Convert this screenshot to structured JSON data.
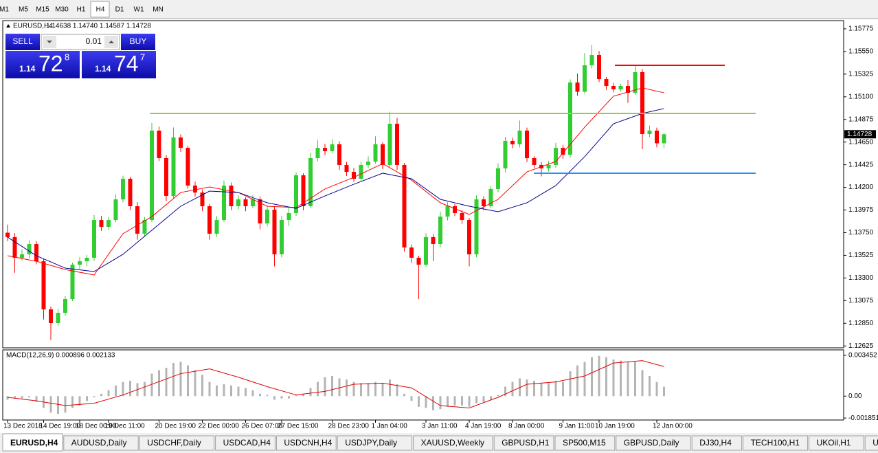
{
  "toolbar": {
    "timeframes": [
      "M1",
      "M5",
      "M15",
      "M30",
      "H1",
      "H4",
      "D1",
      "W1",
      "MN"
    ],
    "active": 5
  },
  "trade_panel": {
    "sell": "SELL",
    "buy": "BUY",
    "lot": "0.01",
    "bid": {
      "big": "1.14",
      "pips": "72",
      "point": "8"
    },
    "ask": {
      "big": "1.14",
      "pips": "74",
      "point": "7"
    }
  },
  "chart_data": [
    {
      "type": "candlestick",
      "title": "EURUSD,H4",
      "ohlc_text": "1.14638 1.14740 1.14587 1.14728",
      "up_color": "#32cd32",
      "down_color": "#ff0000",
      "grid": false,
      "ylim": [
        1.12613,
        1.15843
      ],
      "yticks": [
        1.15775,
        {
          "value": 1.1555,
          "label": "1.15550"
        },
        1.15325,
        {
          "value": 1.151,
          "label": "1.15100"
        },
        1.14875,
        {
          "value": 1.1465,
          "label": "1.14650"
        },
        1.14425,
        {
          "value": 1.142,
          "label": "1.14200"
        },
        1.13975,
        {
          "value": 1.1375,
          "label": "1.13750"
        },
        1.13525,
        {
          "value": 1.133,
          "label": "1.13300"
        },
        1.13075,
        {
          "value": 1.1285,
          "label": "1.12850"
        },
        1.12625
      ],
      "open": [
        1.1375,
        1.13706,
        1.13501,
        1.13535,
        1.13637,
        1.13466,
        1.12988,
        1.12852,
        1.12954,
        1.13091,
        1.13432,
        1.13466,
        1.13501,
        1.13876,
        1.13808,
        1.13876,
        1.14081,
        1.14286,
        1.14013,
        1.1374,
        1.13876,
        1.14764,
        1.14491,
        1.14115,
        1.14696,
        1.14593,
        1.14218,
        1.14149,
        1.14013,
        1.1374,
        1.13876,
        1.14218,
        1.14013,
        1.14081,
        1.14013,
        1.14081,
        1.13842,
        1.13979,
        1.13535,
        1.13876,
        1.13945,
        1.1432,
        1.14013,
        1.14491,
        1.14593,
        1.1456,
        1.14628,
        1.14423,
        1.14354,
        1.14286,
        1.14423,
        1.14457,
        1.14628,
        1.14423,
        1.14832,
        1.14423,
        1.13603,
        1.13501,
        1.13432,
        1.13706,
        1.13637,
        1.1391,
        1.14013,
        1.13945,
        1.13876,
        1.13535,
        1.14081,
        1.14013,
        1.14184,
        1.14389,
        1.14662,
        1.14628,
        1.14764,
        1.14491,
        1.14423,
        1.14389,
        1.14423,
        1.14593,
        1.14525,
        1.15242,
        1.1515,
        1.15413,
        1.15515,
        1.15276,
        1.15208,
        1.15174,
        1.15208,
        1.1514,
        1.15345,
        1.1473,
        1.14764,
        1.14638
      ],
      "high": [
        1.1383,
        1.13746,
        1.13585,
        1.13677,
        1.13667,
        1.13486,
        1.13018,
        1.12994,
        1.13121,
        1.13452,
        1.13506,
        1.13531,
        1.13926,
        1.13916,
        1.13906,
        1.14131,
        1.14316,
        1.14306,
        1.14053,
        1.13906,
        1.1484,
        1.14804,
        1.14521,
        1.14796,
        1.14726,
        1.14613,
        1.14258,
        1.14179,
        1.14033,
        1.13916,
        1.14268,
        1.14248,
        1.14121,
        1.14101,
        1.14121,
        1.14111,
        1.14019,
        1.14009,
        1.13916,
        1.13995,
        1.1435,
        1.1434,
        1.14541,
        1.14673,
        1.14633,
        1.14678,
        1.14658,
        1.14453,
        1.14394,
        1.14453,
        1.14507,
        1.14708,
        1.14648,
        1.14952,
        1.14892,
        1.14443,
        1.13633,
        1.13521,
        1.13746,
        1.13736,
        1.1396,
        1.14053,
        1.14033,
        1.13975,
        1.13896,
        1.14121,
        1.14111,
        1.14214,
        1.14439,
        1.14702,
        1.14692,
        1.14864,
        1.14794,
        1.14511,
        1.14453,
        1.14463,
        1.14643,
        1.14623,
        1.15272,
        1.15332,
        1.15533,
        1.15615,
        1.15555,
        1.15296,
        1.15238,
        1.15228,
        1.15268,
        1.15405,
        1.15375,
        1.14814,
        1.14794,
        1.1474
      ],
      "low": [
        1.13666,
        1.13351,
        1.13471,
        1.13495,
        1.13436,
        1.12888,
        1.12682,
        1.12822,
        1.12924,
        1.13071,
        1.13392,
        1.13416,
        1.13471,
        1.13768,
        1.13778,
        1.13856,
        1.14051,
        1.13973,
        1.1368,
        1.1371,
        1.13856,
        1.14461,
        1.14065,
        1.14085,
        1.14553,
        1.14188,
        1.14109,
        1.13963,
        1.1368,
        1.1371,
        1.13856,
        1.13973,
        1.13983,
        1.13963,
        1.13993,
        1.13782,
        1.13812,
        1.13415,
        1.13505,
        1.13816,
        1.13915,
        1.13973,
        1.13993,
        1.14461,
        1.1452,
        1.1454,
        1.14373,
        1.14314,
        1.14256,
        1.14266,
        1.14393,
        1.14437,
        1.14383,
        1.14403,
        1.14373,
        1.13563,
        1.13451,
        1.13091,
        1.13412,
        1.13467,
        1.13607,
        1.1387,
        1.13915,
        1.13836,
        1.13415,
        1.13505,
        1.13973,
        1.13993,
        1.14154,
        1.14349,
        1.14588,
        1.14598,
        1.14451,
        1.14393,
        1.14309,
        1.14359,
        1.14393,
        1.14485,
        1.14495,
        1.1511,
        1.1513,
        1.15383,
        1.15246,
        1.15168,
        1.15144,
        1.15154,
        1.1504,
        1.1512,
        1.1458,
        1.147,
        1.14598,
        1.14587
      ],
      "close": [
        1.13706,
        1.13501,
        1.13535,
        1.13637,
        1.13466,
        1.12988,
        1.12852,
        1.12954,
        1.13091,
        1.13432,
        1.13466,
        1.13501,
        1.13876,
        1.13808,
        1.13876,
        1.14081,
        1.14286,
        1.14013,
        1.1374,
        1.13876,
        1.14764,
        1.14491,
        1.14115,
        1.14696,
        1.14593,
        1.14218,
        1.14149,
        1.14013,
        1.1374,
        1.13876,
        1.14218,
        1.14013,
        1.14081,
        1.14013,
        1.14081,
        1.13842,
        1.13979,
        1.13535,
        1.13876,
        1.13945,
        1.1432,
        1.14013,
        1.14491,
        1.14593,
        1.1456,
        1.14628,
        1.14423,
        1.14354,
        1.14286,
        1.14423,
        1.14457,
        1.14628,
        1.14423,
        1.14832,
        1.14423,
        1.13603,
        1.13501,
        1.13432,
        1.13706,
        1.13637,
        1.1391,
        1.14013,
        1.13945,
        1.13876,
        1.13535,
        1.14081,
        1.14013,
        1.14184,
        1.14389,
        1.14662,
        1.14628,
        1.14764,
        1.14491,
        1.14423,
        1.14389,
        1.14423,
        1.14593,
        1.14525,
        1.15242,
        1.1515,
        1.15413,
        1.15515,
        1.15276,
        1.15208,
        1.15174,
        1.15208,
        1.1514,
        1.15345,
        1.1473,
        1.14764,
        1.14638,
        1.14728
      ],
      "series": [
        {
          "color": "#ff0000",
          "x": [
            0,
            4,
            8,
            12,
            16,
            20,
            24,
            28,
            32,
            36,
            40,
            44,
            48,
            52,
            56,
            60,
            64,
            68,
            72,
            76,
            80,
            84,
            88,
            91
          ],
          "values": [
            1.13521,
            1.13466,
            1.13384,
            1.1333,
            1.1374,
            1.1391,
            1.14149,
            1.14204,
            1.14149,
            1.14013,
            1.13999,
            1.14184,
            1.143,
            1.14436,
            1.14272,
            1.14047,
            1.13931,
            1.14081,
            1.14354,
            1.14457,
            1.14798,
            1.15106,
            1.15188,
            1.1514
          ]
        },
        {
          "color": "#00008b",
          "x": [
            0,
            4,
            8,
            12,
            16,
            20,
            24,
            28,
            32,
            36,
            40,
            44,
            48,
            52,
            56,
            60,
            64,
            68,
            72,
            76,
            80,
            84,
            88,
            91
          ],
          "values": [
            1.13706,
            1.13521,
            1.13398,
            1.13364,
            1.13535,
            1.13774,
            1.14013,
            1.14163,
            1.14149,
            1.14047,
            1.13992,
            1.14115,
            1.14231,
            1.14341,
            1.14286,
            1.14081,
            1.14013,
            1.13958,
            1.14047,
            1.14218,
            1.14505,
            1.14832,
            1.14935,
            1.14983
          ]
        }
      ],
      "levels": [
        {
          "value": 1.14935,
          "color": "#9acd32"
        },
        {
          "value": 1.15413,
          "color": "#ff0000"
        },
        {
          "value": 1.14341,
          "color": "#1e90ff"
        }
      ],
      "x_labels": [
        {
          "index": 0,
          "label": "13 Dec 2018"
        },
        {
          "index": 5,
          "label": "14 Dec 19:00"
        },
        {
          "index": 10,
          "label": "18 Dec 00:00"
        },
        {
          "index": 14,
          "label": "19 Dec 11:00"
        },
        {
          "index": 21,
          "label": "20 Dec 19:00"
        },
        {
          "index": 27,
          "label": "22 Dec 00:00"
        },
        {
          "index": 33,
          "label": "26 Dec 07:00"
        },
        {
          "index": 38,
          "label": "27 Dec 15:00"
        },
        {
          "index": 45,
          "label": "28 Dec 23:00"
        },
        {
          "index": 51,
          "label": "1 Jan 04:00"
        },
        {
          "index": 58,
          "label": "3 Jan 11:00"
        },
        {
          "index": 64,
          "label": "4 Jan 19:00"
        },
        {
          "index": 70,
          "label": "8 Jan 00:00"
        },
        {
          "index": 77,
          "label": "9 Jan 11:00"
        },
        {
          "index": 82,
          "label": "10 Jan 19:00"
        },
        {
          "index": 90,
          "label": "12 Jan 00:00"
        }
      ]
    },
    {
      "type": "bar",
      "title": "MACD(12,26,9) 0.000896 0.002133",
      "color": "#b4b4b4",
      "ylim": [
        -0.00196,
        0.00385
      ],
      "yticks": [
        0.003452,
        {
          "value": 0,
          "label": "0.00"
        },
        -0.001851
      ],
      "values": [
        -0.0003,
        -0.0002,
        -0.0002,
        -0.0001,
        -0.0005,
        -0.001,
        -0.0014,
        -0.0015,
        -0.0014,
        -0.001,
        -0.0008,
        -0.0004,
        -0.0001,
        0.0002,
        0.0005,
        0.0009,
        0.0012,
        0.0013,
        0.0011,
        0.0012,
        0.0019,
        0.0022,
        0.0024,
        0.0028,
        0.0029,
        0.0026,
        0.0022,
        0.0018,
        0.0012,
        0.0009,
        0.001,
        0.0009,
        0.0008,
        0.0007,
        0.0005,
        0.0002,
        0.0001,
        -0.0003,
        -0.0002,
        -0.0002,
        0.0001,
        0.0002,
        0.0007,
        0.0012,
        0.0016,
        0.0017,
        0.0015,
        0.0014,
        0.0012,
        0.0011,
        0.0011,
        0.0012,
        0.0011,
        0.0014,
        0.001,
        0.0002,
        -0.0004,
        -0.0009,
        -0.001,
        -0.0012,
        -0.0011,
        -0.0009,
        -0.0008,
        -0.0008,
        -0.0009,
        -0.0006,
        -0.0005,
        -0.0003,
        0.0001,
        0.0008,
        0.0012,
        0.0015,
        0.0014,
        0.0013,
        0.0011,
        0.0011,
        0.0013,
        0.0012,
        0.0021,
        0.0026,
        0.0029,
        0.0033,
        0.0034,
        0.0033,
        0.0031,
        0.003,
        0.0029,
        0.0029,
        0.0022,
        0.0017,
        0.0012,
        0.0008
      ],
      "series": [
        {
          "color": "#e00000",
          "x": [
            0,
            4,
            8,
            12,
            16,
            20,
            24,
            28,
            32,
            36,
            40,
            44,
            48,
            52,
            56,
            60,
            64,
            68,
            72,
            76,
            80,
            84,
            88,
            91
          ],
          "values": [
            -0.0001,
            -0.0004,
            -0.0008,
            -0.0006,
            0.0001,
            0.001,
            0.0019,
            0.0023,
            0.0016,
            0.0008,
            0.0001,
            0.0004,
            0.001,
            0.0011,
            0.0007,
            -0.0008,
            -0.001,
            -0.0001,
            0.001,
            0.0012,
            0.0017,
            0.0028,
            0.003,
            0.0025
          ]
        }
      ]
    }
  ],
  "tabs": {
    "items": [
      "EURUSD,H4",
      "AUDUSD,Daily",
      "USDCHF,Daily",
      "USDCAD,H4",
      "USDCNH,H4",
      "USDJPY,Daily",
      "XAUUSD,Weekly",
      "GBPUSD,H1",
      "SP500,M15",
      "GBPUSD,Daily",
      "DJ30,H4",
      "TECH100,H1",
      "UKOil,H1",
      "U"
    ],
    "active": 0
  }
}
